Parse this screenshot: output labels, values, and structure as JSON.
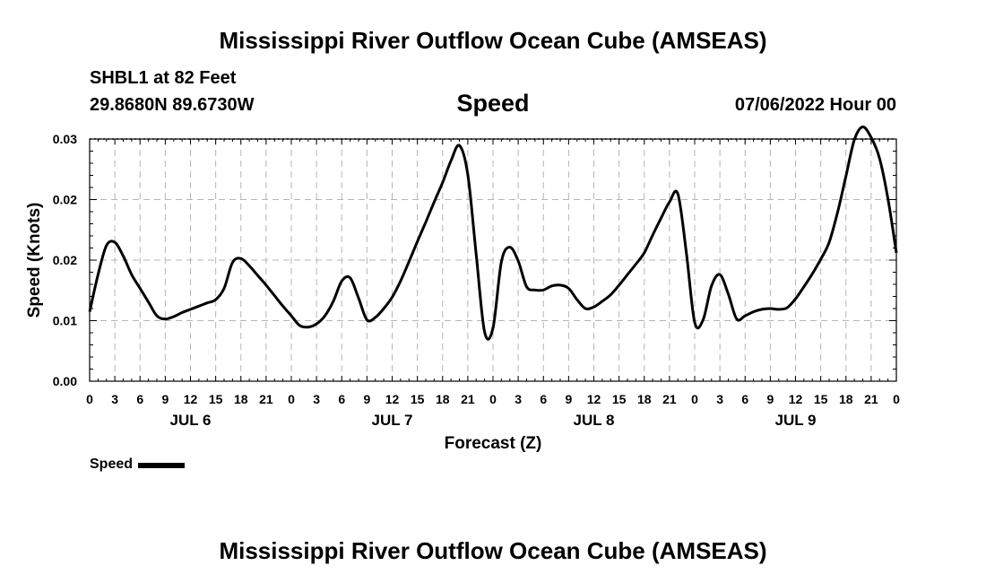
{
  "header": {
    "title": "Mississippi River Outflow Ocean Cube (AMSEAS)",
    "station": "SHBL1 at 82 Feet",
    "coords": "29.8680N  89.6730W",
    "variable": "Speed",
    "datetime": "07/06/2022 Hour 00"
  },
  "footer": {
    "title": "Mississippi River Outflow Ocean Cube (AMSEAS)"
  },
  "legend": {
    "label": "Speed"
  },
  "chart_data": {
    "type": "line",
    "title": "Speed",
    "xlabel": "Forecast (Z)",
    "ylabel": "Speed (Knots)",
    "x_hours_range": [
      0,
      96
    ],
    "ylim": [
      0,
      0.03
    ],
    "y_ticks": [
      0,
      0.01,
      0.02,
      0.03
    ],
    "y_tick_labels": [
      "0.00",
      "0.01",
      "0.02",
      "0.02",
      "0.03"
    ],
    "y_tick_values": [
      0,
      0.0075,
      0.015,
      0.0225,
      0.03
    ],
    "x_ticks_hours": [
      0,
      3,
      6,
      9,
      12,
      15,
      18,
      21,
      24,
      27,
      30,
      33,
      36,
      39,
      42,
      45,
      48,
      51,
      54,
      57,
      60,
      63,
      66,
      69,
      72,
      75,
      78,
      81,
      84,
      87,
      90,
      93,
      96
    ],
    "x_tick_labels": [
      "0",
      "3",
      "6",
      "9",
      "12",
      "15",
      "18",
      "21",
      "0",
      "3",
      "6",
      "9",
      "12",
      "15",
      "18",
      "21",
      "0",
      "3",
      "6",
      "9",
      "12",
      "15",
      "18",
      "21",
      "0",
      "3",
      "6",
      "9",
      "12",
      "15",
      "18",
      "21",
      "0"
    ],
    "day_labels": [
      {
        "label": "JUL 6",
        "hour": 12
      },
      {
        "label": "JUL 7",
        "hour": 36
      },
      {
        "label": "JUL 8",
        "hour": 60
      },
      {
        "label": "JUL 9",
        "hour": 84
      }
    ],
    "grid": true,
    "series": [
      {
        "name": "Speed",
        "color": "#000000",
        "x": [
          0,
          1,
          2,
          3,
          4,
          5,
          6,
          7,
          8,
          9,
          10,
          11,
          12,
          13,
          14,
          15,
          16,
          17,
          18,
          19,
          20,
          21,
          22,
          23,
          24,
          25,
          26,
          27,
          28,
          29,
          30,
          31,
          32,
          33,
          34,
          35,
          36,
          37,
          38,
          39,
          40,
          41,
          42,
          43,
          44,
          45,
          46,
          47,
          48,
          49,
          50,
          51,
          52,
          53,
          54,
          55,
          56,
          57,
          58,
          59,
          60,
          61,
          62,
          63,
          64,
          65,
          66,
          67,
          68,
          69,
          70,
          71,
          72,
          73,
          74,
          75,
          76,
          77,
          78,
          79,
          80,
          81,
          82,
          83,
          84,
          85,
          86,
          87,
          88,
          89,
          90,
          91,
          92,
          93,
          94,
          95,
          96
        ],
        "values": [
          0.0086,
          0.0132,
          0.0168,
          0.0172,
          0.0155,
          0.0132,
          0.0115,
          0.0098,
          0.0081,
          0.0077,
          0.008,
          0.0085,
          0.0089,
          0.0093,
          0.0097,
          0.0101,
          0.0115,
          0.0147,
          0.0152,
          0.0143,
          0.0131,
          0.0119,
          0.0106,
          0.0093,
          0.0081,
          0.0069,
          0.0067,
          0.0071,
          0.0081,
          0.0099,
          0.0124,
          0.0128,
          0.0103,
          0.0076,
          0.0079,
          0.009,
          0.0104,
          0.0124,
          0.0148,
          0.0173,
          0.0197,
          0.0222,
          0.0246,
          0.0273,
          0.0292,
          0.0256,
          0.0157,
          0.0061,
          0.0066,
          0.0148,
          0.0166,
          0.0149,
          0.0117,
          0.0113,
          0.0113,
          0.0118,
          0.0119,
          0.0115,
          0.0101,
          0.009,
          0.0092,
          0.0099,
          0.0107,
          0.0119,
          0.0132,
          0.0145,
          0.0159,
          0.0181,
          0.0202,
          0.0222,
          0.0232,
          0.016,
          0.0073,
          0.0076,
          0.0118,
          0.0132,
          0.0108,
          0.0077,
          0.0081,
          0.0086,
          0.0089,
          0.009,
          0.0089,
          0.0091,
          0.0102,
          0.0117,
          0.0133,
          0.0151,
          0.0172,
          0.0209,
          0.0254,
          0.0299,
          0.0315,
          0.0302,
          0.0276,
          0.0226,
          0.0159
        ]
      }
    ]
  }
}
